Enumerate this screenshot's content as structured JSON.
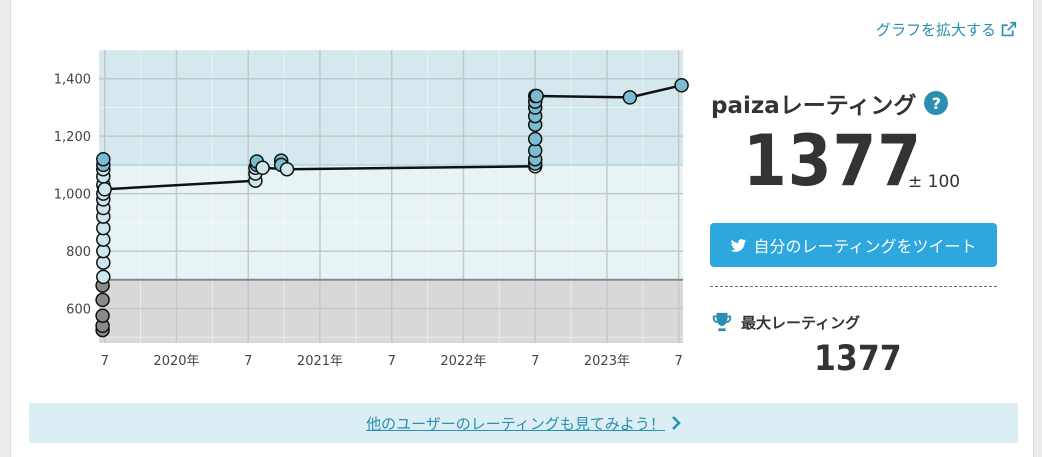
{
  "expand_link": {
    "label": "グラフを拡大する",
    "icon": "external-link-icon"
  },
  "rating": {
    "title": "paizaレーティング",
    "help_icon_label": "?",
    "value": "1377",
    "error": "± 100"
  },
  "tweet_button": {
    "label": "自分のレーティングをツイート",
    "icon": "twitter-bird-icon"
  },
  "max_rating": {
    "title": "最大レーティング",
    "value": "1377",
    "icon": "trophy-icon"
  },
  "others_link": {
    "label": "他のユーザーのレーティングも見てみよう！",
    "icon": "chevron-right-icon"
  },
  "colors": {
    "accent": "#2a8fb0",
    "tweet": "#2ea7df",
    "band_top": "#d5e8ee",
    "band_mid": "#e8f3f5",
    "band_low": "#d8d8d8",
    "point_blue": "#7cbcd0",
    "point_light": "#cde7ef",
    "point_gray": "#8a8a8a"
  },
  "chart_data": {
    "type": "line",
    "title": "",
    "xlabel": "",
    "ylabel": "",
    "x_ticks": [
      {
        "t": 2019.5,
        "label": "7"
      },
      {
        "t": 2020.0,
        "label": "2020年"
      },
      {
        "t": 2020.5,
        "label": "7"
      },
      {
        "t": 2021.0,
        "label": "2021年"
      },
      {
        "t": 2021.5,
        "label": "7"
      },
      {
        "t": 2022.0,
        "label": "2022年"
      },
      {
        "t": 2022.5,
        "label": "7"
      },
      {
        "t": 2023.0,
        "label": "2023年"
      },
      {
        "t": 2023.5,
        "label": "7"
      }
    ],
    "y_ticks": [
      600,
      800,
      1000,
      1200,
      1400
    ],
    "y_tick_labels": [
      "600",
      "800",
      "1,000",
      "1,200",
      "1,400"
    ],
    "xlim": [
      2019.46,
      2023.53
    ],
    "ylim": [
      480,
      1500
    ],
    "bands": [
      {
        "from": 1100,
        "to": 1500,
        "color": "#d5e8ee"
      },
      {
        "from": 700,
        "to": 1100,
        "color": "#e8f3f5"
      },
      {
        "from": 480,
        "to": 700,
        "color": "#d8d8d8"
      }
    ],
    "threshold_line": 700,
    "grid": true,
    "series": [
      {
        "points": [
          [
            2019.485,
            525
          ],
          [
            2019.485,
            540
          ],
          [
            2019.485,
            575
          ],
          [
            2019.485,
            630
          ],
          [
            2019.485,
            680
          ],
          [
            2019.49,
            710
          ],
          [
            2019.49,
            760
          ],
          [
            2019.49,
            800
          ],
          [
            2019.49,
            840
          ],
          [
            2019.49,
            880
          ],
          [
            2019.49,
            920
          ],
          [
            2019.49,
            950
          ],
          [
            2019.49,
            980
          ],
          [
            2019.49,
            1000
          ],
          [
            2019.49,
            1030
          ],
          [
            2019.49,
            1060
          ],
          [
            2019.49,
            1085
          ],
          [
            2019.49,
            1100
          ],
          [
            2019.49,
            1120
          ],
          [
            2019.5,
            1015
          ],
          [
            2020.55,
            1045
          ],
          [
            2020.55,
            1070
          ],
          [
            2020.55,
            1090
          ],
          [
            2020.56,
            1100
          ],
          [
            2020.56,
            1112
          ],
          [
            2020.6,
            1090
          ],
          [
            2020.73,
            1115
          ],
          [
            2020.73,
            1100
          ],
          [
            2020.77,
            1085
          ],
          [
            2022.5,
            1095
          ],
          [
            2022.5,
            1105
          ],
          [
            2022.5,
            1120
          ],
          [
            2022.5,
            1150
          ],
          [
            2022.5,
            1190
          ],
          [
            2022.5,
            1240
          ],
          [
            2022.5,
            1270
          ],
          [
            2022.5,
            1300
          ],
          [
            2022.5,
            1320
          ],
          [
            2022.5,
            1340
          ],
          [
            2022.51,
            1340
          ],
          [
            2023.16,
            1335
          ],
          [
            2023.52,
            1377
          ]
        ],
        "line": [
          [
            2019.5,
            1015
          ],
          [
            2020.56,
            1045
          ],
          [
            2020.6,
            1090
          ],
          [
            2020.77,
            1085
          ],
          [
            2022.5,
            1095
          ],
          [
            2022.51,
            1340
          ],
          [
            2023.16,
            1335
          ],
          [
            2023.52,
            1377
          ]
        ]
      }
    ]
  }
}
